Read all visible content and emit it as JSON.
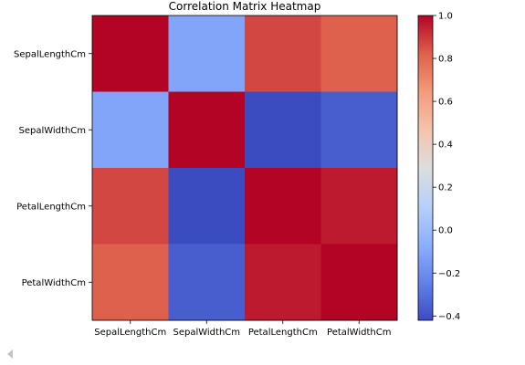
{
  "chart_data": {
    "type": "heatmap",
    "title": "Correlation Matrix Heatmap",
    "rows": [
      "SepalLengthCm",
      "SepalWidthCm",
      "PetalLengthCm",
      "PetalWidthCm"
    ],
    "columns": [
      "SepalLengthCm",
      "SepalWidthCm",
      "PetalLengthCm",
      "PetalWidthCm"
    ],
    "values": [
      [
        1.0,
        -0.11,
        0.87,
        0.82
      ],
      [
        -0.11,
        1.0,
        -0.42,
        -0.36
      ],
      [
        0.87,
        -0.42,
        1.0,
        0.96
      ],
      [
        0.82,
        -0.36,
        0.96,
        1.0
      ]
    ],
    "colormap": "coolwarm",
    "colorbar": {
      "range": [
        -0.42,
        1.0
      ],
      "ticks": [
        -0.4,
        -0.2,
        0.0,
        0.2,
        0.4,
        0.6,
        0.8,
        1.0
      ],
      "tick_labels": [
        "−0.4",
        "−0.2",
        "0.0",
        "0.2",
        "0.4",
        "0.6",
        "0.8",
        "1.0"
      ]
    },
    "grid": false
  }
}
